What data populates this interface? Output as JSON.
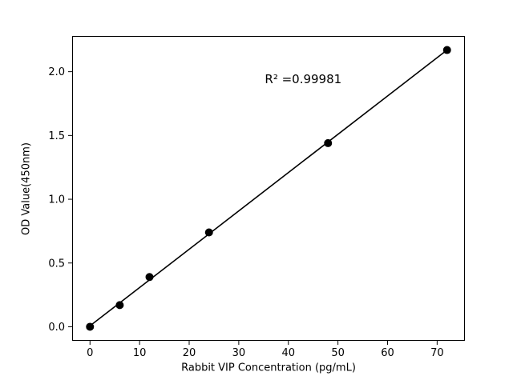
{
  "chart_data": {
    "type": "scatter",
    "title": "",
    "xlabel": "Rabbit VIP Concentration (pg/mL)",
    "ylabel": "OD Value(450nm)",
    "x": [
      0,
      6,
      12,
      24,
      48,
      72
    ],
    "y": [
      0.0,
      0.17,
      0.39,
      0.74,
      1.44,
      2.17
    ],
    "fit_line": true,
    "r_squared": 0.99981,
    "annotation": {
      "text": "R² =0.99981",
      "x": 43,
      "y": 1.94
    },
    "xlim": [
      -3.6,
      75.6
    ],
    "ylim": [
      -0.11,
      2.28
    ],
    "xticks": [
      0,
      10,
      20,
      30,
      40,
      50,
      60,
      70
    ],
    "xtick_labels": [
      "0",
      "10",
      "20",
      "30",
      "40",
      "50",
      "60",
      "70"
    ],
    "yticks": [
      0.0,
      0.5,
      1.0,
      1.5,
      2.0
    ],
    "ytick_labels": [
      "0.0",
      "0.5",
      "1.0",
      "1.5",
      "2.0"
    ],
    "grid": false,
    "legend": "none",
    "line_color": "#000000",
    "marker_color": "#000000",
    "background_color": "#ffffff"
  }
}
